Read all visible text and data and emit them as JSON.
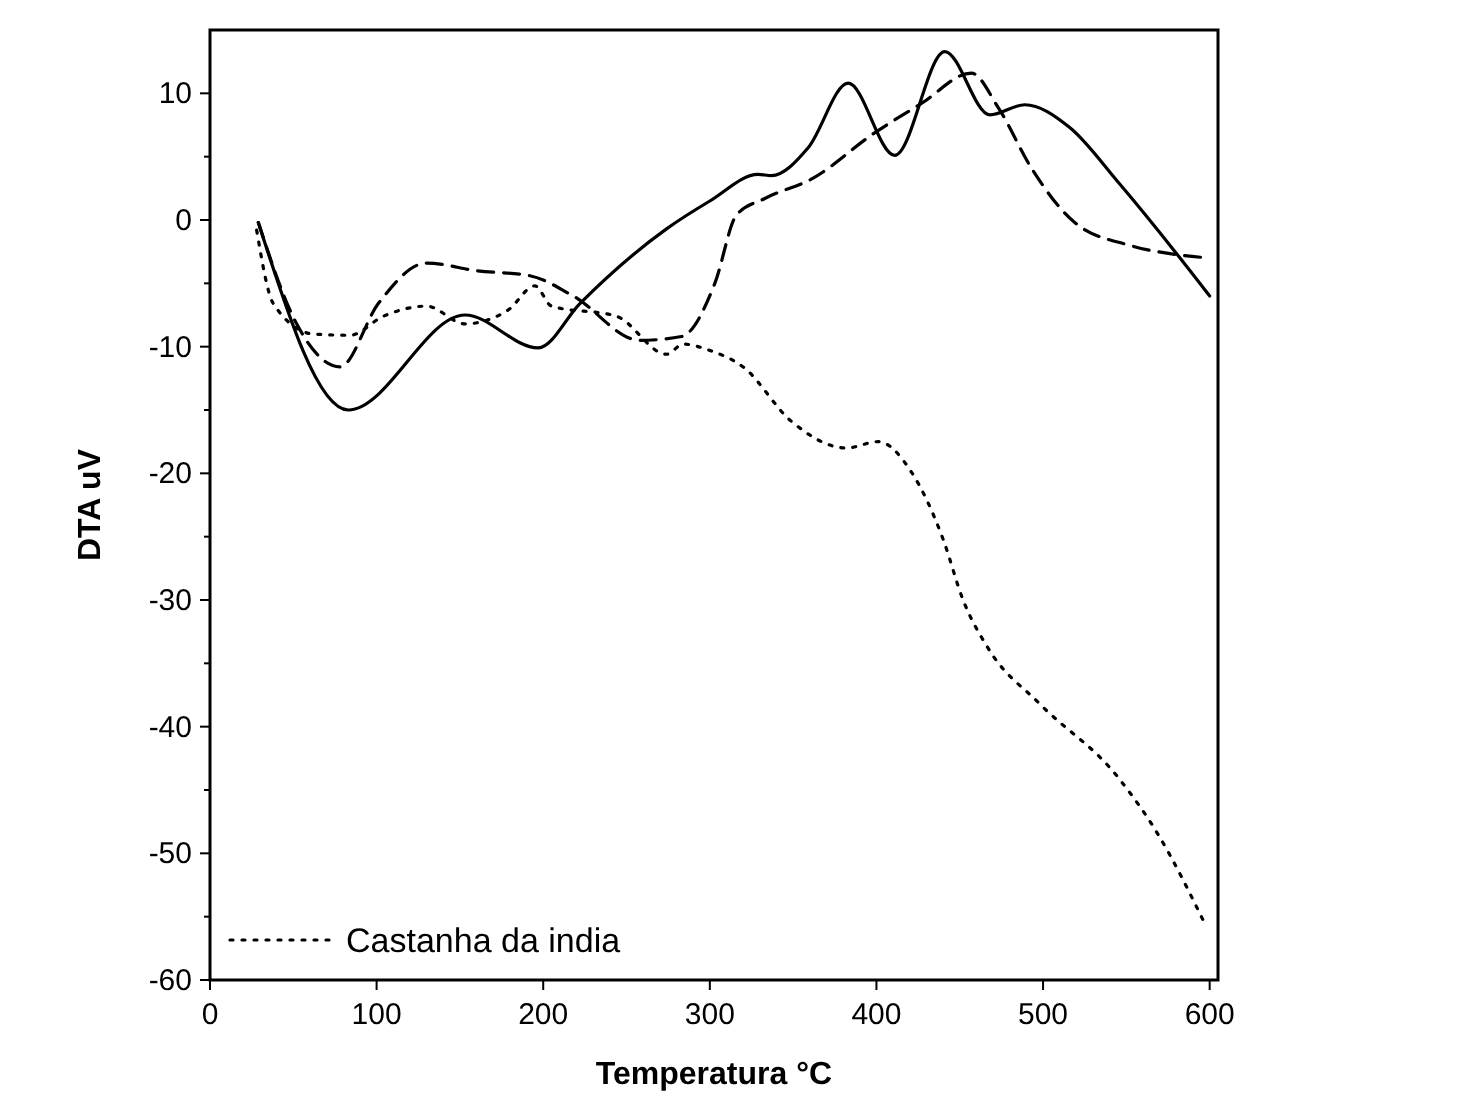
{
  "chart_data": {
    "type": "line",
    "xlabel": "Temperatura °C",
    "ylabel": "DTA uV",
    "xlim": [
      0,
      605
    ],
    "ylim": [
      -60,
      15
    ],
    "xticks": [
      0,
      100,
      200,
      300,
      400,
      500,
      600
    ],
    "yticks": [
      -60,
      {
        "value": -55,
        "label": null
      },
      -50,
      {
        "value": -45,
        "label": null
      },
      -40,
      {
        "value": -35,
        "label": null
      },
      -30,
      {
        "value": -25,
        "label": null
      },
      -20,
      {
        "value": -15,
        "label": null
      },
      -10,
      {
        "value": -5,
        "label": null
      },
      0,
      {
        "value": 5,
        "label": null
      },
      10
    ],
    "legend": "bottom left",
    "grid": false,
    "series": [
      {
        "name": "Castanha da india",
        "color": "#000000",
        "line_style": "dotted",
        "x": [
          28,
          38,
          62,
          84,
          104,
          130,
          153,
          179,
          195,
          205,
          244,
          274,
          284,
          300,
          320,
          349,
          382,
          401,
          421,
          440,
          452,
          467,
          498,
          545,
          569,
          598
        ],
        "values": [
          -0.8,
          -6.6,
          -9,
          -9.1,
          -7.6,
          -6.8,
          -8.2,
          -7.1,
          -5.2,
          -6.8,
          -7.6,
          -10.6,
          -9.8,
          -10.3,
          -11.6,
          -15.9,
          -18,
          -17.5,
          -19.9,
          -25.2,
          -30,
          -33.8,
          -38.2,
          -44,
          -48.5,
          -55.8
        ]
      },
      {
        "color": "#000000",
        "line_style": "solid",
        "x": [
          29,
          83,
          153,
          197,
          222,
          274,
          300,
          329,
          337,
          359,
          383,
          411,
          441,
          468,
          489,
          516,
          545,
          578,
          600
        ],
        "values": [
          -0.2,
          -15,
          -7.5,
          -10.1,
          -6.6,
          -0.7,
          1.5,
          3.6,
          3.5,
          5.7,
          10.8,
          5.1,
          13.3,
          8.3,
          9.1,
          7.3,
          3,
          -2.3,
          -6
        ]
      },
      {
        "color": "#000000",
        "line_style": "dashed",
        "x": [
          29,
          52,
          78,
          101,
          130,
          160,
          192,
          218,
          258,
          283,
          303,
          316,
          333,
          362,
          398,
          427,
          457,
          473,
          493,
          519,
          552,
          578,
          600
        ],
        "values": [
          -0.2,
          -8.2,
          -11.6,
          -6.6,
          -3.4,
          -4,
          -4.4,
          -6,
          -9.5,
          -9.2,
          -5,
          0.4,
          1.7,
          3.3,
          6.8,
          9.2,
          11.6,
          8.9,
          4.1,
          -0.2,
          -2,
          -2.7,
          -3
        ]
      }
    ]
  }
}
